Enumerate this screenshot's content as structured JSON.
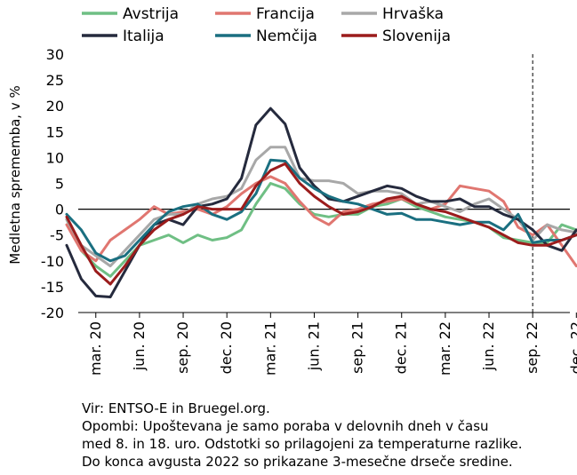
{
  "chart_data": {
    "type": "line",
    "ylabel": "Medletna sprememba, v %",
    "ylim": [
      -20,
      30
    ],
    "yticks": [
      -20,
      -15,
      -10,
      -5,
      0,
      5,
      10,
      15,
      20,
      25,
      30
    ],
    "xtick_labels": [
      "mar. 20",
      "jun. 20",
      "sep. 20",
      "dec. 20",
      "mar. 21",
      "jun. 21",
      "sep. 21",
      "dec. 21",
      "mar. 22",
      "jun. 22",
      "sep. 22",
      "dec. 22"
    ],
    "x": [
      "2020-01",
      "2020-02",
      "2020-03",
      "2020-04",
      "2020-05",
      "2020-06",
      "2020-07",
      "2020-08",
      "2020-09",
      "2020-10",
      "2020-11",
      "2020-12",
      "2021-01",
      "2021-02",
      "2021-03",
      "2021-04",
      "2021-05",
      "2021-06",
      "2021-07",
      "2021-08",
      "2021-09",
      "2021-10",
      "2021-11",
      "2021-12",
      "2022-01",
      "2022-02",
      "2022-03",
      "2022-04",
      "2022-05",
      "2022-06",
      "2022-07",
      "2022-08",
      "2022-09",
      "2022-10",
      "2022-11",
      "2022-12"
    ],
    "vertical_marker_at": "2022-09",
    "legend_position": "top",
    "series": [
      {
        "name": "Avstrija",
        "color": "#6fbf84",
        "values": [
          -2,
          -8,
          -11,
          -13,
          -10,
          -7,
          -6,
          -5,
          -6.5,
          -5,
          -6,
          -5.5,
          -4,
          1,
          5,
          4,
          1,
          -1,
          -1.5,
          -1,
          -1,
          0.5,
          1,
          2,
          0.5,
          -0.5,
          -1.5,
          -2,
          -2.5,
          -3.5,
          -5.5,
          -6,
          -6.5,
          -6.5,
          -3,
          -4
        ]
      },
      {
        "name": "Francija",
        "color": "#e07670",
        "values": [
          -3,
          -8,
          -10,
          -6,
          -4,
          -2,
          0.5,
          -1,
          -0.5,
          0,
          -1,
          0.5,
          3,
          5,
          6.3,
          5,
          1.5,
          -1.5,
          -3,
          -0.5,
          0,
          1,
          1.5,
          2,
          1,
          0,
          1,
          4.5,
          4,
          3.5,
          1.5,
          -3.5,
          -5,
          -3,
          -7,
          -11
        ]
      },
      {
        "name": "Hrvaška",
        "color": "#a8a8a8",
        "values": [
          -2,
          -7,
          -9,
          -11,
          -8,
          -5,
          -2,
          -1,
          -1,
          1,
          2,
          2.5,
          4,
          9.5,
          12,
          12,
          6,
          5.5,
          5.5,
          5,
          3,
          3.5,
          3.5,
          3,
          1,
          1.5,
          0.5,
          -0.5,
          1,
          2,
          0,
          -2,
          -6,
          -3,
          -4,
          -4.5
        ]
      },
      {
        "name": "Italija",
        "color": "#252a3d",
        "values": [
          -7,
          -13.5,
          -16.8,
          -17,
          -12,
          -7,
          -3,
          -2,
          -3,
          0.5,
          1,
          2,
          6,
          16.3,
          19.5,
          16.5,
          8,
          4.5,
          2,
          1.5,
          2.5,
          3.5,
          4.5,
          4,
          2.5,
          1.5,
          1.5,
          2,
          0.5,
          0.5,
          -1,
          -2,
          -4,
          -7,
          -8,
          -4
        ]
      },
      {
        "name": "Nemčija",
        "color": "#1a6f80",
        "values": [
          -1,
          -4,
          -8.5,
          -10,
          -9,
          -6,
          -3,
          -0.5,
          0.5,
          1,
          -1,
          -2,
          -0.5,
          3,
          9.5,
          9.3,
          6,
          4,
          2.5,
          1.5,
          1,
          0,
          -1,
          -0.8,
          -2,
          -2,
          -2.5,
          -3,
          -2.5,
          -2.5,
          -4,
          -1,
          -6.5,
          -6,
          -6,
          -5
        ]
      },
      {
        "name": "Slovenija",
        "color": "#9b1c1c",
        "values": [
          -1.5,
          -7,
          -12,
          -14.5,
          -11,
          -7,
          -4,
          -2,
          -1,
          0.5,
          0,
          0,
          0,
          4.5,
          7.5,
          8.8,
          5,
          2.5,
          0.5,
          -1,
          -0.5,
          0.5,
          2,
          2.5,
          1,
          0,
          -0.5,
          -1.5,
          -2.5,
          -3.5,
          -5,
          -6.5,
          -7,
          -7,
          -6,
          -5
        ]
      }
    ]
  },
  "notes": {
    "source": "Vir: ENTSO-E in Bruegel.org.",
    "note_line1": "Opombi: Upoštevana je samo poraba v delovnih dneh v času",
    "note_line2": "med 8. in 18. uro. Odstotki so prilagojeni za temperaturne razlike.",
    "note_line3": "Do konca avgusta 2022 so prikazane 3-mesečne drseče sredine."
  }
}
